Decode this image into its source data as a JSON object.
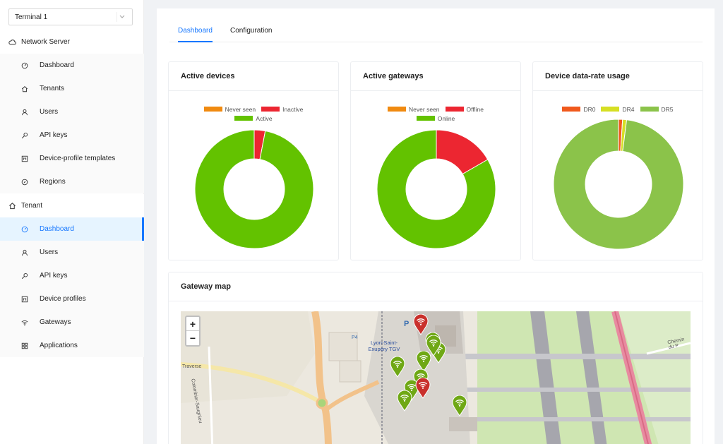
{
  "sidebar": {
    "tenant_select": {
      "value": "Terminal 1"
    },
    "network_server": {
      "label": "Network Server",
      "items": [
        {
          "label": "Dashboard",
          "icon": "dashboard-icon"
        },
        {
          "label": "Tenants",
          "icon": "home-icon"
        },
        {
          "label": "Users",
          "icon": "user-icon"
        },
        {
          "label": "API keys",
          "icon": "key-icon"
        },
        {
          "label": "Device-profile templates",
          "icon": "template-icon"
        },
        {
          "label": "Regions",
          "icon": "compass-icon"
        }
      ]
    },
    "tenant": {
      "label": "Tenant",
      "items": [
        {
          "label": "Dashboard",
          "icon": "dashboard-icon",
          "active": true
        },
        {
          "label": "Users",
          "icon": "user-icon"
        },
        {
          "label": "API keys",
          "icon": "key-icon"
        },
        {
          "label": "Device profiles",
          "icon": "template-icon"
        },
        {
          "label": "Gateways",
          "icon": "wifi-icon"
        },
        {
          "label": "Applications",
          "icon": "apps-icon"
        }
      ]
    }
  },
  "tabs": [
    {
      "label": "Dashboard",
      "active": true
    },
    {
      "label": "Configuration",
      "active": false
    }
  ],
  "cards": {
    "active_devices": {
      "title": "Active devices",
      "chart_data": {
        "type": "pie",
        "series": [
          {
            "name": "Never seen",
            "value": 0,
            "color": "#f08a10"
          },
          {
            "name": "Inactive",
            "value": 3,
            "color": "#ec2631"
          },
          {
            "name": "Active",
            "value": 97,
            "color": "#63c200"
          }
        ]
      }
    },
    "active_gateways": {
      "title": "Active gateways",
      "chart_data": {
        "type": "pie",
        "series": [
          {
            "name": "Never seen",
            "value": 0,
            "color": "#f08a10"
          },
          {
            "name": "Offline",
            "value": 2,
            "color": "#ec2631"
          },
          {
            "name": "Online",
            "value": 10,
            "color": "#63c200"
          }
        ]
      }
    },
    "data_rate": {
      "title": "Device data-rate usage",
      "chart_data": {
        "type": "pie",
        "series": [
          {
            "name": "DR0",
            "value": 1,
            "color": "#f0591c"
          },
          {
            "name": "DR4",
            "value": 1,
            "color": "#d6df23"
          },
          {
            "name": "DR5",
            "value": 98,
            "color": "#8bc34a"
          }
        ]
      }
    },
    "gateway_map": {
      "title": "Gateway map",
      "map_labels": {
        "station": "Lyon-Saint-Exupéry TGV",
        "parking_p4": "P4",
        "road_left": "Traverse",
        "road_colombier": "Colombier-Saugnieu",
        "road_right": "Chemin du P",
        "parking_p": "P"
      },
      "zoom_in": "+",
      "zoom_out": "−",
      "gateways": [
        {
          "status": "offline"
        },
        {
          "status": "online"
        },
        {
          "status": "online"
        },
        {
          "status": "online"
        },
        {
          "status": "online"
        },
        {
          "status": "online"
        },
        {
          "status": "online"
        },
        {
          "status": "offline"
        },
        {
          "status": "online"
        },
        {
          "status": "online"
        },
        {
          "status": "online"
        }
      ]
    }
  },
  "colors": {
    "accent": "#1677ff",
    "online": "#63c200",
    "offline": "#ec2631",
    "never_seen": "#f08a10"
  }
}
